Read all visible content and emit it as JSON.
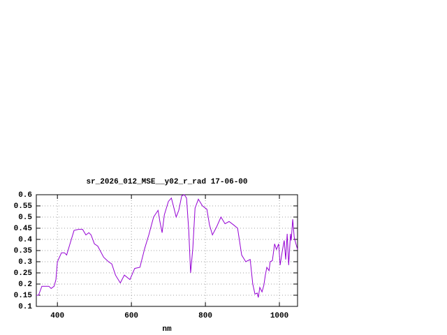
{
  "chart_data": {
    "type": "line",
    "title": "sr_2026_012_MSE__y02_r_rad 17-06-00",
    "x_label": "nm",
    "color": "#9400d3",
    "grid": true,
    "xlim": [
      343,
      1049
    ],
    "ylim": [
      0.1,
      0.6
    ],
    "xticks": [
      400,
      600,
      800,
      1000
    ],
    "yticks": [
      0.1,
      0.15,
      0.2,
      0.25,
      0.3,
      0.35,
      0.4,
      0.45,
      0.5,
      0.55,
      0.6
    ],
    "x": [
      343,
      349,
      358,
      368,
      377,
      383,
      391,
      396,
      400,
      411,
      419,
      425,
      434,
      445,
      457,
      468,
      477,
      485,
      491,
      500,
      509,
      525,
      538,
      547,
      557,
      570,
      581,
      596,
      609,
      623,
      636,
      647,
      660,
      672,
      677,
      683,
      689,
      700,
      708,
      715,
      721,
      728,
      736,
      743,
      749,
      755,
      760,
      766,
      772,
      781,
      792,
      804,
      811,
      819,
      830,
      842,
      853,
      864,
      876,
      887,
      898,
      909,
      921,
      928,
      934,
      940,
      943,
      947,
      953,
      958,
      962,
      966,
      972,
      975,
      981,
      987,
      992,
      998,
      1002,
      1008,
      1013,
      1017,
      1021,
      1025,
      1030,
      1032,
      1036,
      1040,
      1043,
      1049
    ],
    "values": [
      0.15,
      0.15,
      0.19,
      0.19,
      0.19,
      0.18,
      0.19,
      0.22,
      0.3,
      0.34,
      0.34,
      0.33,
      0.38,
      0.44,
      0.445,
      0.445,
      0.42,
      0.43,
      0.42,
      0.38,
      0.37,
      0.32,
      0.3,
      0.29,
      0.24,
      0.205,
      0.24,
      0.22,
      0.27,
      0.275,
      0.36,
      0.42,
      0.5,
      0.53,
      0.48,
      0.43,
      0.51,
      0.57,
      0.585,
      0.54,
      0.5,
      0.53,
      0.595,
      0.6,
      0.585,
      0.44,
      0.25,
      0.36,
      0.54,
      0.58,
      0.55,
      0.535,
      0.465,
      0.42,
      0.455,
      0.5,
      0.47,
      0.48,
      0.465,
      0.45,
      0.33,
      0.3,
      0.31,
      0.2,
      0.155,
      0.16,
      0.14,
      0.185,
      0.165,
      0.195,
      0.24,
      0.275,
      0.26,
      0.3,
      0.305,
      0.38,
      0.355,
      0.38,
      0.285,
      0.35,
      0.395,
      0.31,
      0.425,
      0.285,
      0.425,
      0.395,
      0.49,
      0.41,
      0.39,
      0.355
    ]
  }
}
